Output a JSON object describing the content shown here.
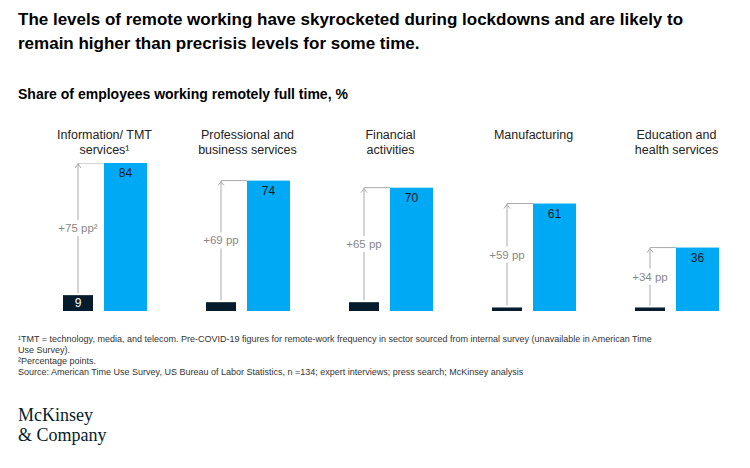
{
  "chart_data": {
    "type": "bar",
    "title": "The levels of remote working have skyrocketed during lockdowns and are likely to remain higher than precrisis levels for some time.",
    "subtitle": "Share of employees working remotely full time, %",
    "categories": [
      "Information/ TMT services¹",
      "Professional and business services",
      "Financial activities",
      "Manufacturing",
      "Education and health services"
    ],
    "series": [
      {
        "color": "#051c2c",
        "values": [
          9,
          5,
          5,
          2,
          2
        ]
      },
      {
        "color": "#00a9f4",
        "values": [
          84,
          74,
          70,
          61,
          36
        ]
      }
    ],
    "ylim": [
      0,
      84
    ],
    "data_labels": true,
    "tick_labels": "x",
    "annotations": [
      "+75 pp²",
      "+69 pp",
      "+65 pp",
      "+59 pp",
      "+34 pp"
    ],
    "footnotes": [
      "¹TMT = technology, media, and telecom. Pre-COVID-19 figures for remote-work frequency in sector sourced from internal survey (unavailable in American Time Use Survey).",
      "²Percentage points.",
      "Source: American Time Use Survey, US Bureau of Labor Statistics, n =134; expert interviews; press search; McKinsey analysis"
    ],
    "logo": [
      "McKinsey",
      "& Company"
    ]
  }
}
